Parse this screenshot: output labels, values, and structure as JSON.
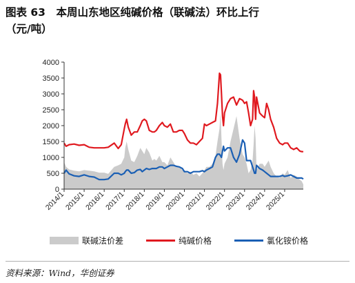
{
  "title_line1": "图表 63　本周山东地区纯碱价格（联碱法）环比上行",
  "title_line2": "（元/吨）",
  "source": "资料来源：Wind，华创证券",
  "colors": {
    "price_diff": "#cbcbcb",
    "soda_ash": "#e0191f",
    "ammonium_chloride": "#1a5fb4",
    "axis": "#333333"
  },
  "chart_data": {
    "type": "area",
    "title": "本周山东地区纯碱价格（联碱法）环比上行（元/吨）",
    "xlabel": "",
    "ylabel": "",
    "ylim": [
      0,
      4000
    ],
    "yticks": [
      "0",
      "500",
      "1000",
      "1500",
      "2000",
      "2500",
      "3000",
      "3500",
      "4000"
    ],
    "xticks": [
      "2014/1",
      "2015/1",
      "2016/1",
      "2017/1",
      "2018/1",
      "2019/1",
      "2020/1",
      "2021/1",
      "2022/1",
      "2023/1",
      "2024/1",
      "2025/1"
    ],
    "xlim": [
      2014.0,
      2025.93
    ],
    "grid": false,
    "legend_position": "bottom",
    "x": [
      2014.0,
      2014.1,
      2014.25,
      2014.5,
      2014.75,
      2015.0,
      2015.25,
      2015.5,
      2015.75,
      2016.0,
      2016.2,
      2016.5,
      2016.7,
      2016.85,
      2017.0,
      2017.05,
      2017.12,
      2017.2,
      2017.35,
      2017.5,
      2017.65,
      2017.8,
      2017.9,
      2018.0,
      2018.1,
      2018.25,
      2018.4,
      2018.5,
      2018.6,
      2018.75,
      2018.9,
      2019.0,
      2019.15,
      2019.3,
      2019.45,
      2019.6,
      2019.75,
      2019.9,
      2020.0,
      2020.15,
      2020.3,
      2020.45,
      2020.6,
      2020.75,
      2020.9,
      2021.0,
      2021.1,
      2021.25,
      2021.4,
      2021.55,
      2021.65,
      2021.75,
      2021.8,
      2021.85,
      2021.9,
      2021.95,
      2022.0,
      2022.15,
      2022.3,
      2022.45,
      2022.6,
      2022.75,
      2022.9,
      2023.0,
      2023.1,
      2023.2,
      2023.3,
      2023.4,
      2023.45,
      2023.5,
      2023.55,
      2023.6,
      2023.75,
      2023.9,
      2024.0,
      2024.1,
      2024.2,
      2024.3,
      2024.45,
      2024.6,
      2024.75,
      2024.9,
      2025.0,
      2025.15,
      2025.3,
      2025.45,
      2025.6,
      2025.75,
      2025.85,
      2025.93
    ],
    "series": [
      {
        "name": "联碱法价差",
        "role": "area",
        "values": [
          850,
          700,
          620,
          580,
          560,
          600,
          580,
          560,
          520,
          520,
          480,
          700,
          750,
          800,
          1000,
          1300,
          1500,
          1250,
          900,
          850,
          1050,
          1300,
          1200,
          1100,
          1300,
          1150,
          900,
          950,
          900,
          1050,
          850,
          850,
          750,
          1000,
          850,
          700,
          700,
          600,
          600,
          500,
          550,
          450,
          500,
          400,
          500,
          600,
          700,
          700,
          800,
          1050,
          1500,
          1900,
          2400,
          1600,
          800,
          600,
          800,
          1000,
          1500,
          1900,
          2300,
          1600,
          1100,
          1000,
          800,
          500,
          600,
          900,
          1400,
          2000,
          1600,
          600,
          800,
          800,
          700,
          800,
          900,
          700,
          500,
          400,
          350,
          500,
          450,
          600,
          350,
          450,
          400,
          300,
          250,
          150
        ]
      },
      {
        "name": "纯碱价格",
        "role": "line",
        "values": [
          1450,
          1350,
          1400,
          1420,
          1380,
          1400,
          1320,
          1300,
          1300,
          1300,
          1320,
          1450,
          1280,
          1400,
          1900,
          2050,
          2200,
          1950,
          1700,
          1800,
          1800,
          2000,
          2150,
          2200,
          2150,
          1850,
          1800,
          1800,
          1850,
          2000,
          2100,
          2000,
          1950,
          2050,
          1800,
          1800,
          1850,
          1850,
          1750,
          1550,
          1450,
          1450,
          1400,
          1500,
          1600,
          2050,
          2000,
          2050,
          2100,
          2150,
          2700,
          3650,
          3600,
          3000,
          2300,
          2000,
          2400,
          2700,
          2850,
          2900,
          2650,
          2850,
          2800,
          2700,
          2750,
          2400,
          2000,
          2200,
          3100,
          2900,
          2200,
          2900,
          2400,
          2300,
          2250,
          2700,
          2500,
          2200,
          1950,
          1600,
          1450,
          1400,
          1450,
          1450,
          1300,
          1250,
          1300,
          1200,
          1180,
          1180
        ]
      },
      {
        "name": "氯化铵价格",
        "role": "line",
        "values": [
          500,
          600,
          480,
          420,
          400,
          450,
          400,
          380,
          300,
          300,
          320,
          500,
          500,
          450,
          500,
          550,
          600,
          600,
          500,
          520,
          600,
          620,
          550,
          600,
          650,
          620,
          650,
          650,
          650,
          700,
          700,
          650,
          700,
          750,
          750,
          720,
          700,
          650,
          550,
          550,
          500,
          550,
          550,
          550,
          580,
          550,
          600,
          650,
          700,
          1000,
          1100,
          1100,
          1050,
          1000,
          1200,
          1350,
          1200,
          1300,
          1300,
          1000,
          850,
          1100,
          1550,
          1450,
          900,
          900,
          900,
          700,
          600,
          500,
          500,
          750,
          650,
          600,
          550,
          500,
          450,
          400,
          400,
          400,
          400,
          430,
          400,
          420,
          450,
          400,
          350,
          350,
          350,
          320
        ]
      }
    ]
  }
}
